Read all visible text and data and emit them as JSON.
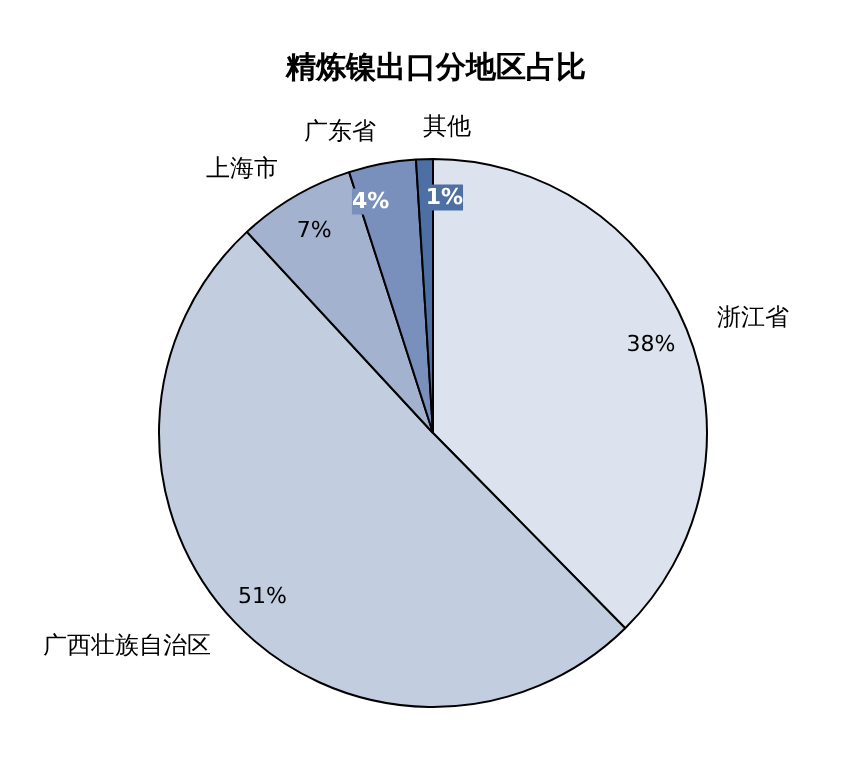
{
  "chart_data": {
    "type": "pie",
    "title": "精炼镍出口分地区占比",
    "categories": [
      "浙江省",
      "广西壮族自治区",
      "上海市",
      "广东省",
      "其他"
    ],
    "values": [
      38,
      51,
      7,
      4,
      1
    ],
    "value_labels": [
      "38%",
      "51%",
      "7%",
      "4%",
      "1%"
    ],
    "colors": [
      "#dde3ee",
      "#c3cde0",
      "#a3b2cf",
      "#7990bd",
      "#4e6fa3"
    ]
  }
}
